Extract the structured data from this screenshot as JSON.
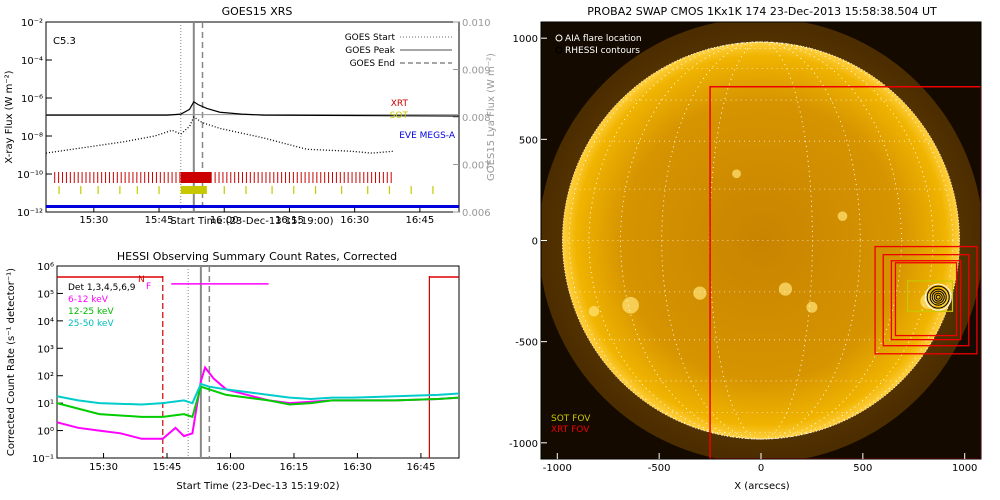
{
  "colors": {
    "xrt": "#cc0000",
    "sot": "#c8c800",
    "eve": "#0000dd",
    "det": "#ff00ff",
    "band1": "#ff00ff",
    "band2": "#00cc00",
    "band3": "#00cccc",
    "axis_gray": "#999999",
    "fov_red": "#ee0000",
    "sun": "#e8a000"
  },
  "chart_data": [
    {
      "type": "line",
      "title": "GOES15 XRS",
      "xlabel": "Start Time (23-Dec-13 15:19:00)",
      "ylabel": "X-ray Flux (W m⁻²)",
      "ylabel_right": "GOES15 Lya Flux (W m⁻²)",
      "flare_class": "C5.3",
      "x_ticks": [
        "15:30",
        "15:45",
        "16:00",
        "16:15",
        "16:30",
        "16:45"
      ],
      "y_ticks": [
        "10⁻¹²",
        "10⁻¹⁰",
        "10⁻⁸",
        "10⁻⁶",
        "10⁻⁴",
        "10⁻²"
      ],
      "y_ticks_right": [
        "0.006",
        "0.007",
        "0.008",
        "0.009",
        "0.010"
      ],
      "legend": [
        "GOES Start",
        "GOES Peak",
        "GOES End"
      ],
      "instrument_labels": [
        "XRT",
        "SOT",
        "EVE MEGS-A"
      ],
      "ylim_log": [
        -12,
        -2
      ],
      "ylim_right": [
        0.006,
        0.01
      ],
      "xlim_minutes": [
        0,
        95
      ],
      "goes_start_min": 31,
      "goes_peak_min": 34,
      "goes_end_min": 36,
      "long_channel": [
        [
          0,
          -6.9
        ],
        [
          28,
          -6.9
        ],
        [
          31,
          -6.85
        ],
        [
          33,
          -6.6
        ],
        [
          34,
          -6.2
        ],
        [
          35,
          -6.35
        ],
        [
          37,
          -6.55
        ],
        [
          40,
          -6.75
        ],
        [
          45,
          -6.85
        ],
        [
          50,
          -6.9
        ],
        [
          95,
          -6.95
        ]
      ],
      "lya_channel": [
        [
          0,
          0.00805
        ],
        [
          95,
          0.00805
        ]
      ],
      "short_channel": [
        [
          0,
          -8.9
        ],
        [
          6,
          -8.7
        ],
        [
          12,
          -8.5
        ],
        [
          18,
          -8.3
        ],
        [
          25,
          -8.0
        ],
        [
          29,
          -7.7
        ],
        [
          31,
          -7.9
        ],
        [
          33,
          -7.5
        ],
        [
          34,
          -7.0
        ],
        [
          36,
          -7.3
        ],
        [
          40,
          -7.6
        ],
        [
          45,
          -7.85
        ],
        [
          50,
          -8.1
        ],
        [
          55,
          -8.4
        ],
        [
          60,
          -8.7
        ],
        [
          65,
          -8.75
        ],
        [
          70,
          -8.8
        ],
        [
          75,
          -8.9
        ],
        [
          80,
          -8.8
        ]
      ]
    },
    {
      "type": "line",
      "title": "HESSI Observing Summary Count Rates, Corrected",
      "xlabel": "Start Time (23-Dec-13 15:19:02)",
      "ylabel": "Corrected Count Rate (s⁻¹ detector⁻¹)",
      "x_ticks": [
        "15:30",
        "15:45",
        "16:00",
        "16:15",
        "16:30",
        "16:45"
      ],
      "y_ticks": [
        "10⁻¹",
        "10⁰",
        "10¹",
        "10²",
        "10³",
        "10⁴",
        "10⁵",
        "10⁶"
      ],
      "ylim_log": [
        -1,
        6
      ],
      "xlim_minutes": [
        0,
        95
      ],
      "legend": [
        "Det 1,3,4,5,6,9",
        "6-12 keV",
        "12-25 keV",
        "25-50 keV"
      ],
      "flag_labels": [
        "N",
        "F"
      ],
      "night_end_min": 25,
      "night_start_min": 88,
      "series": [
        {
          "name": "6-12 keV",
          "points": [
            [
              0,
              0.3
            ],
            [
              5,
              0.1
            ],
            [
              10,
              0.0
            ],
            [
              15,
              -0.1
            ],
            [
              20,
              -0.3
            ],
            [
              25,
              -0.3
            ],
            [
              28,
              0.1
            ],
            [
              30,
              -0.2
            ],
            [
              32,
              -0.1
            ],
            [
              34,
              1.8
            ],
            [
              35,
              2.3
            ],
            [
              37,
              1.9
            ],
            [
              40,
              1.5
            ],
            [
              45,
              1.3
            ],
            [
              50,
              1.1
            ],
            [
              55,
              1.0
            ],
            [
              60,
              1.05
            ],
            [
              65,
              1.1
            ],
            [
              70,
              1.1
            ],
            [
              80,
              1.1
            ],
            [
              90,
              1.15
            ],
            [
              95,
              1.2
            ]
          ]
        },
        {
          "name": "12-25 keV",
          "points": [
            [
              0,
              1.0
            ],
            [
              5,
              0.8
            ],
            [
              10,
              0.6
            ],
            [
              20,
              0.5
            ],
            [
              25,
              0.5
            ],
            [
              30,
              0.6
            ],
            [
              32,
              0.5
            ],
            [
              34,
              1.6
            ],
            [
              36,
              1.5
            ],
            [
              40,
              1.3
            ],
            [
              45,
              1.2
            ],
            [
              50,
              1.1
            ],
            [
              55,
              0.95
            ],
            [
              60,
              1.0
            ],
            [
              65,
              1.1
            ],
            [
              70,
              1.1
            ],
            [
              80,
              1.1
            ],
            [
              90,
              1.15
            ],
            [
              95,
              1.2
            ]
          ]
        },
        {
          "name": "25-50 keV",
          "points": [
            [
              0,
              1.25
            ],
            [
              5,
              1.1
            ],
            [
              10,
              1.0
            ],
            [
              20,
              0.95
            ],
            [
              25,
              1.0
            ],
            [
              30,
              1.1
            ],
            [
              32,
              1.0
            ],
            [
              34,
              1.7
            ],
            [
              36,
              1.6
            ],
            [
              40,
              1.5
            ],
            [
              45,
              1.4
            ],
            [
              50,
              1.3
            ],
            [
              55,
              1.2
            ],
            [
              60,
              1.15
            ],
            [
              65,
              1.2
            ],
            [
              70,
              1.2
            ],
            [
              80,
              1.25
            ],
            [
              90,
              1.3
            ],
            [
              95,
              1.35
            ]
          ]
        }
      ],
      "det_line": [
        [
          0,
          5.6
        ],
        [
          25,
          5.6
        ]
      ],
      "det_line_right": [
        [
          88,
          5.6
        ],
        [
          95,
          5.6
        ]
      ],
      "flag_line": [
        [
          27,
          5.35
        ],
        [
          50,
          5.35
        ]
      ]
    },
    {
      "type": "heatmap",
      "title": "PROBA2 SWAP CMOS 1Kx1K 174 23-Dec-2013 15:58:38.504 UT",
      "xlabel": "X (arcsecs)",
      "ylabel": "",
      "x_ticks": [
        "-1000",
        "-500",
        "0",
        "500",
        "1000"
      ],
      "y_ticks": [
        "-1000",
        "-500",
        "0",
        "500",
        "1000"
      ],
      "xlim": [
        -1080,
        1080
      ],
      "ylim": [
        -1080,
        1080
      ],
      "legend": [
        "AIA flare location",
        "RHESSI contours"
      ],
      "fov_labels": [
        "SOT FOV",
        "XRT FOV"
      ],
      "sun_radius": 975,
      "flare_x": 870,
      "flare_y": -280,
      "xrt_fov": [
        -250,
        -1080,
        1080,
        760
      ],
      "fov_boxes": [
        [
          560,
          -560,
          1060,
          -30
        ],
        [
          600,
          -520,
          1020,
          -70
        ],
        [
          640,
          -490,
          980,
          -100
        ],
        [
          660,
          -470,
          960,
          -110
        ]
      ],
      "sot_box": [
        720,
        -350,
        940,
        -200
      ]
    }
  ]
}
